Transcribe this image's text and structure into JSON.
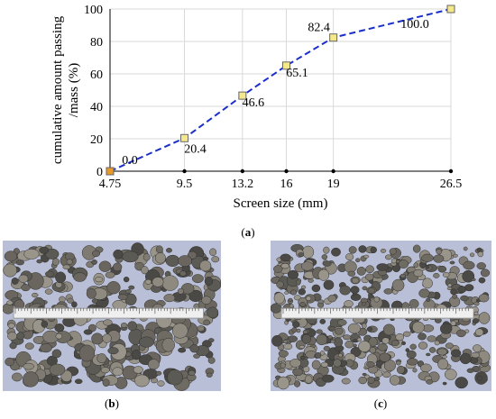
{
  "chart_data": {
    "type": "line",
    "xlabel": "Screen size (mm)",
    "ylabel_lines": [
      "cumulative amount passing",
      "/mass (%)"
    ],
    "ylim": [
      0,
      100
    ],
    "yticks": [
      0,
      20,
      40,
      60,
      80,
      100
    ],
    "x_tick_labels": [
      "4.75",
      "9.5",
      "13.2",
      "16",
      "19",
      "26.5"
    ],
    "x_tick_values": [
      4.75,
      9.5,
      13.2,
      16,
      19,
      26.5
    ],
    "grid": true,
    "series": [
      {
        "x": [
          4.75,
          9.5,
          13.2,
          16,
          19,
          26.5
        ],
        "values": [
          0.0,
          20.4,
          46.6,
          65.1,
          82.4,
          100.0
        ],
        "data_labels": [
          "0.0",
          "20.4",
          "46.6",
          "65.1",
          "82.4",
          "100.0"
        ],
        "color": "#1a2fc9",
        "marker_color": "#f5e88a",
        "first_marker_color": "#e89a2a"
      }
    ]
  },
  "captions": {
    "a": "a",
    "b": "b",
    "c": "c"
  },
  "photos": {
    "b": "aggregate-sample-with-ruler",
    "c": "aggregate-sample-with-ruler"
  },
  "colors": {
    "grid": "#d9d9d9",
    "axis": "#000000",
    "photo_background": "#b9bfd6",
    "ruler": "#efefef"
  }
}
